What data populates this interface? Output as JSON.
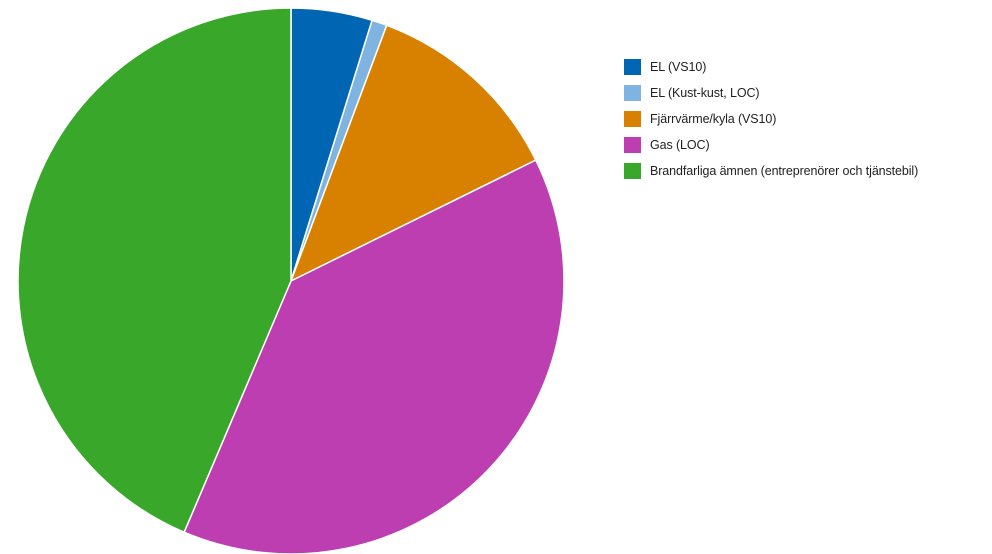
{
  "chart_data": {
    "type": "pie",
    "title": "",
    "categories": [
      "EL (VS10)",
      "EL (Kust-kust, LOC)",
      "Fjärrvärme/kyla (VS10)",
      "Gas (LOC)",
      "Brandfarliga ämnen (entreprenörer och tjänstebil)"
    ],
    "values": [
      4.8,
      0.9,
      12.0,
      38.7,
      43.6
    ],
    "colors": [
      "#0066B3",
      "#7FB4E1",
      "#D88000",
      "#BD3EB0",
      "#38A72A"
    ],
    "start_angle": "12 o'clock",
    "direction": "clockwise",
    "legend_position": "right"
  }
}
